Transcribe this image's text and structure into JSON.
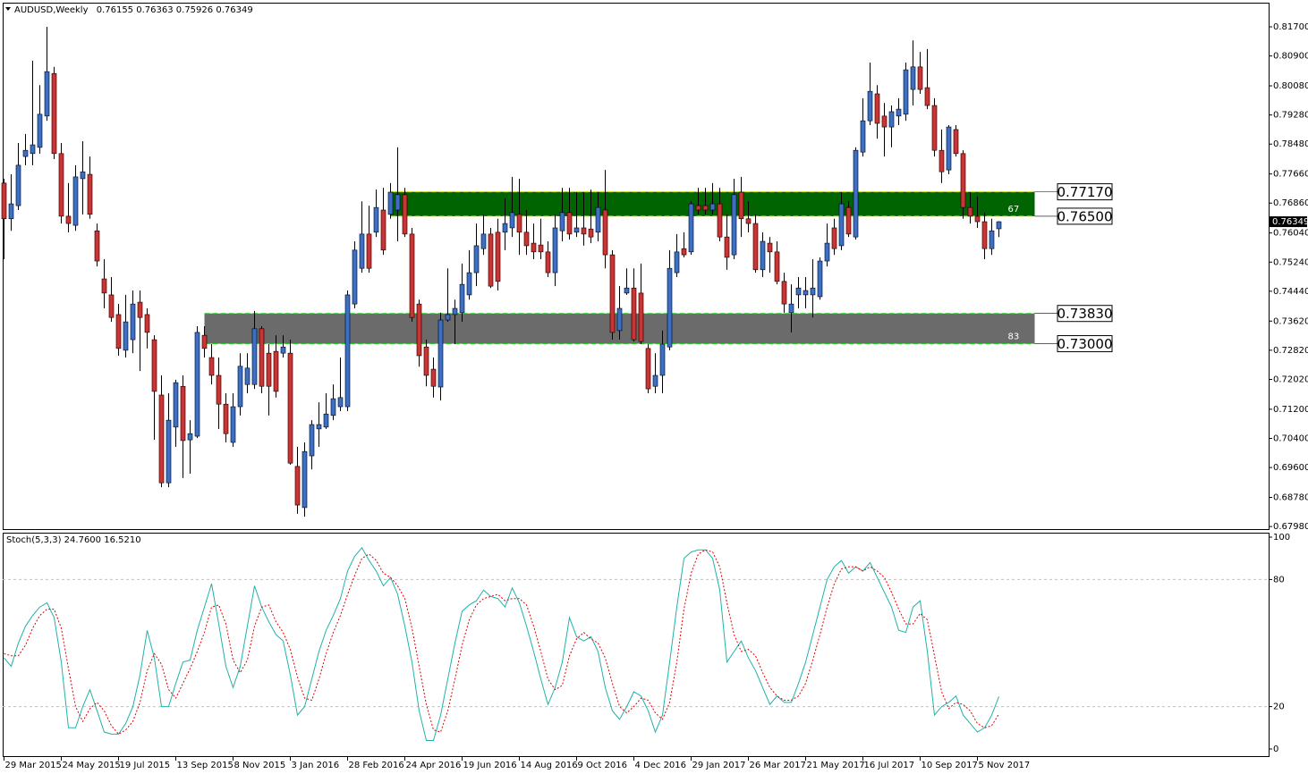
{
  "chart_data": [
    {
      "type": "candlestick",
      "title": "AUDUSD,Weekly",
      "categories": [
        "29 Mar 2015",
        null,
        null,
        null,
        null,
        null,
        null,
        null,
        "24 May 2015",
        null,
        null,
        null,
        null,
        null,
        null,
        null,
        "19 Jul 2015",
        null,
        null,
        null,
        null,
        null,
        null,
        null,
        "13 Sep 2015",
        null,
        null,
        null,
        null,
        null,
        null,
        null,
        "8 Nov 2015",
        null,
        null,
        null,
        null,
        null,
        null,
        null,
        "3 Jan 2016",
        null,
        null,
        null,
        null,
        null,
        null,
        null,
        "28 Feb 2016",
        null,
        null,
        null,
        null,
        null,
        null,
        null,
        "24 Apr 2016",
        null,
        null,
        null,
        null,
        null,
        null,
        null,
        "19 Jun 2016",
        null,
        null,
        null,
        null,
        null,
        null,
        null,
        "14 Aug 2016",
        null,
        null,
        null,
        null,
        null,
        null,
        null,
        "9 Oct 2016",
        null,
        null,
        null,
        null,
        null,
        null,
        null,
        "4 Dec 2016",
        null,
        null,
        null,
        null,
        null,
        null,
        null,
        "29 Jan 2017",
        null,
        null,
        null,
        null,
        null,
        null,
        null,
        "26 Mar 2017",
        null,
        null,
        null,
        null,
        null,
        null,
        null,
        "21 May 2017",
        null,
        null,
        null,
        null,
        null,
        null,
        null,
        "16 Jul 2017",
        null,
        null,
        null,
        null,
        null,
        null,
        null,
        "10 Sep 2017",
        null,
        null,
        null,
        null,
        null,
        null,
        null,
        "5 Nov 2017",
        null,
        null,
        null
      ],
      "open": [
        0.7741,
        0.7643,
        0.7679,
        0.7814,
        0.7822,
        0.7839,
        0.7925,
        0.8042,
        0.7822,
        0.765,
        0.7625,
        0.7753,
        0.7765,
        0.761,
        0.7478,
        0.7434,
        0.738,
        0.7282,
        0.7311,
        0.7414,
        0.738,
        0.7311,
        0.7159,
        0.6918,
        0.7071,
        0.7183,
        0.7036,
        0.7046,
        0.7323,
        0.7262,
        0.7213,
        0.7134,
        0.7029,
        0.7127,
        0.7188,
        0.7188,
        0.7341,
        0.7274,
        0.7279,
        0.7274,
        0.7274,
        0.6963,
        0.685,
        0.6992,
        0.7066,
        0.7071,
        0.7103,
        0.7127,
        0.7127,
        0.7409,
        0.7507,
        0.7601,
        0.7606,
        0.7667,
        0.7655,
        0.7667,
        0.7709,
        0.7601,
        0.7409,
        0.7291,
        0.723,
        0.7181,
        0.7365,
        0.738,
        0.7385,
        0.7434,
        0.7495,
        0.7561,
        0.7601,
        0.7606,
        0.7606,
        0.7618,
        0.7655,
        0.7606,
        0.7576,
        0.7571,
        0.7552,
        0.7495,
        0.761,
        0.766,
        0.7606,
        0.7618,
        0.7615,
        0.7606,
        0.7667,
        0.7544,
        0.7336,
        0.7439,
        0.7453,
        0.7439,
        0.7287,
        0.7183,
        0.7213,
        0.7291,
        0.7495,
        0.7561,
        0.7552,
        0.7679,
        0.7679,
        0.7667,
        0.7684,
        0.7593,
        0.7544,
        0.7716,
        0.7643,
        0.763,
        0.7503,
        0.7576,
        0.7552,
        0.7471,
        0.7385,
        0.7434,
        0.7434,
        0.7434,
        0.7429,
        0.7527,
        0.7618,
        0.7569,
        0.7674,
        0.7593,
        0.7826,
        0.7912,
        0.7986,
        0.7925,
        0.7895,
        0.7925,
        0.793,
        0.7998,
        0.806,
        0.8003,
        0.7954,
        0.7831,
        0.7777,
        0.7888,
        0.7822,
        0.7674,
        0.765,
        0.7635,
        0.7561,
        0.76155
      ],
      "high": [
        0.7753,
        0.7765,
        0.7851,
        0.7876,
        0.8077,
        0.801,
        0.817,
        0.806,
        0.7851,
        0.7741,
        0.779,
        0.7856,
        0.7814,
        0.763,
        0.7532,
        0.7483,
        0.7409,
        0.7434,
        0.7446,
        0.7446,
        0.7397,
        0.7323,
        0.7213,
        0.7164,
        0.7201,
        0.7213,
        0.709,
        0.7348,
        0.7348,
        0.7299,
        0.7262,
        0.7164,
        0.7164,
        0.7274,
        0.7274,
        0.739,
        0.7348,
        0.7299,
        0.7323,
        0.7323,
        0.7311,
        0.7017,
        0.7029,
        0.709,
        0.7139,
        0.7164,
        0.7188,
        0.7262,
        0.7446,
        0.7581,
        0.7691,
        0.7679,
        0.7723,
        0.7728,
        0.7741,
        0.7839,
        0.7728,
        0.7618,
        0.7421,
        0.7311,
        0.7262,
        0.7385,
        0.7507,
        0.7421,
        0.752,
        0.7557,
        0.763,
        0.7655,
        0.7618,
        0.7643,
        0.7699,
        0.7758,
        0.7753,
        0.7667,
        0.763,
        0.7643,
        0.7581,
        0.7655,
        0.7728,
        0.7728,
        0.7716,
        0.7716,
        0.7723,
        0.7716,
        0.7777,
        0.7557,
        0.7458,
        0.7507,
        0.7507,
        0.752,
        0.7299,
        0.7274,
        0.7336,
        0.7557,
        0.7601,
        0.7606,
        0.7691,
        0.7728,
        0.7728,
        0.7741,
        0.7728,
        0.7655,
        0.7753,
        0.7758,
        0.7691,
        0.7655,
        0.7606,
        0.7593,
        0.7581,
        0.7495,
        0.7463,
        0.7483,
        0.7483,
        0.7532,
        0.7537,
        0.763,
        0.7643,
        0.7716,
        0.7691,
        0.7839,
        0.7974,
        0.8072,
        0.801,
        0.7961,
        0.7954,
        0.7974,
        0.8072,
        0.8133,
        0.8101,
        0.8109,
        0.7974,
        0.7888,
        0.79,
        0.79,
        0.7831,
        0.7716,
        0.7704,
        0.766,
        0.7643,
        0.76363
      ],
      "low": [
        0.7532,
        0.761,
        0.7667,
        0.779,
        0.779,
        0.7822,
        0.7912,
        0.7807,
        0.763,
        0.7606,
        0.761,
        0.7655,
        0.7643,
        0.7512,
        0.7397,
        0.736,
        0.7267,
        0.7262,
        0.7274,
        0.7225,
        0.7287,
        0.7036,
        0.6906,
        0.6906,
        0.7017,
        0.6931,
        0.6943,
        0.7041,
        0.7262,
        0.7188,
        0.7066,
        0.7029,
        0.7017,
        0.7103,
        0.7164,
        0.7176,
        0.7164,
        0.7103,
        0.7152,
        0.7262,
        0.6968,
        0.6833,
        0.6825,
        0.6955,
        0.7017,
        0.7066,
        0.709,
        0.7115,
        0.7115,
        0.7397,
        0.7495,
        0.7495,
        0.7593,
        0.7544,
        0.7643,
        0.7581,
        0.7593,
        0.736,
        0.7237,
        0.7183,
        0.7152,
        0.7144,
        0.736,
        0.7299,
        0.736,
        0.7421,
        0.7458,
        0.7544,
        0.7453,
        0.7446,
        0.7557,
        0.7593,
        0.7544,
        0.7544,
        0.7532,
        0.7532,
        0.7483,
        0.7458,
        0.7581,
        0.7586,
        0.7593,
        0.7569,
        0.7576,
        0.7581,
        0.7507,
        0.7311,
        0.7311,
        0.7434,
        0.7306,
        0.7299,
        0.7164,
        0.7164,
        0.7164,
        0.7282,
        0.7483,
        0.7537,
        0.7544,
        0.7655,
        0.7655,
        0.7655,
        0.7581,
        0.7503,
        0.7532,
        0.7593,
        0.7606,
        0.7495,
        0.7483,
        0.7495,
        0.7463,
        0.7385,
        0.7331,
        0.7397,
        0.7397,
        0.7372,
        0.7421,
        0.7512,
        0.7544,
        0.7557,
        0.7593,
        0.7586,
        0.7814,
        0.79,
        0.7863,
        0.7814,
        0.7839,
        0.79,
        0.7912,
        0.7954,
        0.7986,
        0.7944,
        0.7814,
        0.7741,
        0.7765,
        0.7814,
        0.7643,
        0.763,
        0.7618,
        0.7532,
        0.7544,
        0.75926
      ],
      "close": [
        0.7643,
        0.7684,
        0.779,
        0.7831,
        0.7846,
        0.793,
        0.8047,
        0.7822,
        0.765,
        0.763,
        0.7758,
        0.7772,
        0.7655,
        0.7527,
        0.7439,
        0.7372,
        0.7287,
        0.736,
        0.7409,
        0.7372,
        0.7331,
        0.7169,
        0.6918,
        0.709,
        0.7193,
        0.7034,
        0.7053,
        0.7331,
        0.7287,
        0.7213,
        0.7134,
        0.7053,
        0.7127,
        0.7238,
        0.7233,
        0.7341,
        0.7183,
        0.7183,
        0.7169,
        0.7291,
        0.6972,
        0.6857,
        0.7004,
        0.7078,
        0.7078,
        0.7107,
        0.7149,
        0.7152,
        0.7434,
        0.7557,
        0.7601,
        0.7507,
        0.7674,
        0.7557,
        0.7716,
        0.7709,
        0.7601,
        0.7372,
        0.7267,
        0.7213,
        0.7183,
        0.7365,
        0.738,
        0.7397,
        0.7463,
        0.7495,
        0.7569,
        0.7601,
        0.7458,
        0.7471,
        0.763,
        0.766,
        0.7606,
        0.7569,
        0.7552,
        0.7552,
        0.7495,
        0.7618,
        0.766,
        0.7601,
        0.7618,
        0.7601,
        0.7593,
        0.7674,
        0.7544,
        0.7331,
        0.7397,
        0.7453,
        0.7311,
        0.7306,
        0.7176,
        0.7213,
        0.7299,
        0.7507,
        0.7552,
        0.7544,
        0.7684,
        0.7667,
        0.7667,
        0.7684,
        0.7593,
        0.7537,
        0.7709,
        0.7643,
        0.763,
        0.7503,
        0.7581,
        0.7552,
        0.7471,
        0.7409,
        0.7409,
        0.7453,
        0.7446,
        0.7453,
        0.7527,
        0.7576,
        0.7561,
        0.7684,
        0.7601,
        0.7831,
        0.7912,
        0.7993,
        0.7905,
        0.7895,
        0.7937,
        0.7944,
        0.8052,
        0.806,
        0.7998,
        0.7954,
        0.7831,
        0.7772,
        0.7895,
        0.7822,
        0.7674,
        0.765,
        0.7635,
        0.7561,
        0.761,
        0.76349
      ],
      "up_color": "#3d6fc6",
      "down_color": "#cc3333",
      "ylim": [
        0.67909,
        0.82363
      ],
      "yticks": [
        {
          "value": 0.817,
          "label": "0.81700"
        },
        {
          "value": 0.809,
          "label": "0.80900"
        },
        {
          "value": 0.8008,
          "label": "0.80080"
        },
        {
          "value": 0.7928,
          "label": "0.79280"
        },
        {
          "value": 0.7848,
          "label": "0.78480"
        },
        {
          "value": 0.7766,
          "label": "0.77660"
        },
        {
          "value": 0.7686,
          "label": "0.76860"
        },
        {
          "value": 0.7604,
          "label": "0.76040"
        },
        {
          "value": 0.7524,
          "label": "0.75240"
        },
        {
          "value": 0.7444,
          "label": "0.74440"
        },
        {
          "value": 0.7362,
          "label": "0.73620"
        },
        {
          "value": 0.7282,
          "label": "0.72820"
        },
        {
          "value": 0.7202,
          "label": "0.72020"
        },
        {
          "value": 0.712,
          "label": "0.71200"
        },
        {
          "value": 0.704,
          "label": "0.70400"
        },
        {
          "value": 0.696,
          "label": "0.69600"
        },
        {
          "value": 0.6878,
          "label": "0.68780"
        },
        {
          "value": 0.6798,
          "label": "0.67980"
        }
      ],
      "zones": [
        {
          "top": {
            "value": 0.7717,
            "label": "0.77170"
          },
          "bottom": {
            "value": 0.765,
            "label": "0.76500"
          },
          "label": 67,
          "color": "#006400",
          "edge": "#c8e000",
          "start": 54,
          "end": 144
        },
        {
          "top": {
            "value": 0.7383,
            "label": "0.73830"
          },
          "bottom": {
            "value": 0.73,
            "label": "0.73000"
          },
          "label": 83,
          "color": "#6b6b6b",
          "edge": "#22cc22",
          "start": 28,
          "end": 144
        }
      ]
    },
    {
      "type": "line",
      "title": "Stoch(5,3,3)",
      "ylim": [
        0,
        100
      ],
      "yticks": [
        100,
        80,
        20,
        0
      ],
      "series": [
        {
          "color": "#20b2aa",
          "dash": false,
          "readout": {
            "value": 24.76,
            "label": "24.7600"
          },
          "values": [
            43,
            39,
            50,
            58,
            63,
            67,
            69,
            62,
            41,
            10,
            10,
            20,
            28,
            18,
            8,
            7,
            7,
            12,
            20,
            35,
            56,
            43,
            20,
            20,
            31,
            41,
            42,
            56,
            67,
            78,
            59,
            39,
            29,
            39,
            58,
            77,
            67,
            60,
            54,
            51,
            35,
            16,
            20,
            33,
            46,
            56,
            63,
            71,
            84,
            91,
            95,
            89,
            84,
            77,
            81,
            73,
            58,
            41,
            18,
            4,
            4,
            16,
            33,
            50,
            65,
            68,
            70,
            75,
            72,
            71,
            67,
            76,
            69,
            58,
            46,
            33,
            21,
            29,
            41,
            62,
            53,
            51,
            53,
            46,
            29,
            18,
            14,
            20,
            27,
            25,
            18,
            8,
            16,
            41,
            67,
            90,
            93,
            94,
            94,
            90,
            75,
            41,
            46,
            51,
            43,
            37,
            29,
            21,
            25,
            22,
            22,
            31,
            41,
            54,
            67,
            80,
            86,
            89,
            83,
            86,
            84,
            88,
            81,
            74,
            67,
            56,
            55,
            67,
            70,
            46,
            16,
            20,
            22,
            25,
            16,
            12,
            8,
            10,
            16,
            24.76
          ]
        },
        {
          "color": "#e00000",
          "dash": true,
          "readout": {
            "value": 16.521,
            "label": "16.5210"
          },
          "values": [
            45,
            44,
            44,
            49,
            57,
            63,
            66,
            66,
            57,
            38,
            20,
            13,
            19,
            22,
            18,
            11,
            7,
            9,
            13,
            22,
            37,
            45,
            40,
            28,
            24,
            31,
            38,
            46,
            55,
            67,
            68,
            59,
            42,
            36,
            42,
            58,
            67,
            68,
            60,
            55,
            47,
            34,
            24,
            23,
            33,
            45,
            55,
            63,
            73,
            82,
            90,
            92,
            89,
            83,
            81,
            77,
            71,
            57,
            39,
            21,
            9,
            8,
            18,
            33,
            49,
            61,
            68,
            71,
            72,
            73,
            70,
            71,
            71,
            68,
            58,
            46,
            33,
            28,
            30,
            44,
            52,
            55,
            52,
            50,
            43,
            31,
            20,
            17,
            20,
            24,
            23,
            17,
            14,
            22,
            41,
            66,
            83,
            92,
            94,
            93,
            86,
            69,
            54,
            46,
            47,
            44,
            36,
            29,
            25,
            23,
            23,
            25,
            31,
            42,
            54,
            67,
            78,
            85,
            86,
            86,
            84,
            86,
            84,
            81,
            74,
            66,
            59,
            59,
            64,
            61,
            44,
            27,
            19,
            22,
            21,
            18,
            12,
            10,
            11,
            16.521
          ]
        }
      ]
    }
  ]
}
